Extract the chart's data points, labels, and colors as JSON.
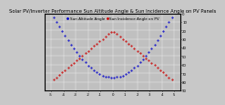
{
  "title": "Solar PV/Inverter Performance Sun Altitude Angle & Sun Incidence Angle on PV Panels",
  "blue_label": "Sun Altitude Angle",
  "red_label": "Sun Incidence Angle on PV",
  "background_color": "#c8c8c8",
  "plot_bg_color": "#c0c0c0",
  "blue_color": "#0000cc",
  "red_color": "#cc0000",
  "title_fontsize": 3.8,
  "legend_fontsize": 3.0,
  "tick_fontsize": 2.8,
  "xlim_min": -5.5,
  "xlim_max": 5.5,
  "ylim_min": 0,
  "ylim_max": 90,
  "ytick_step": 10,
  "n_points": 48,
  "daylight_hours": 5.0,
  "peak_altitude": 75,
  "min_incidence_mid": 20,
  "max_incidence_edge": 80
}
